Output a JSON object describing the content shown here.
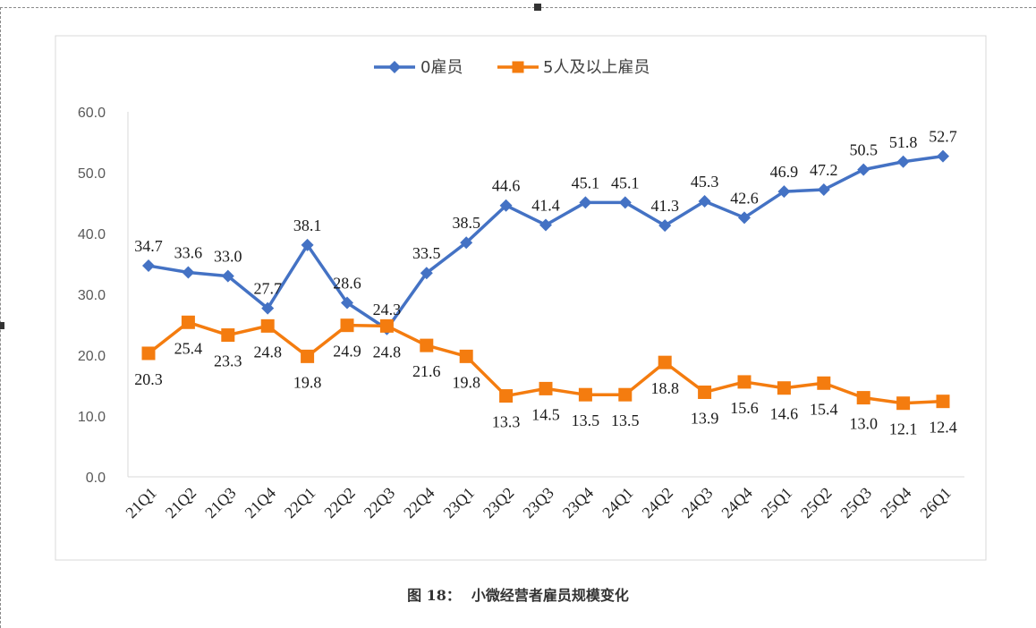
{
  "caption": {
    "figure_no": "图 18：",
    "title": "小微经营者雇员规模变化"
  },
  "chart_data": {
    "type": "line",
    "title": "",
    "xlabel": "",
    "ylabel": "",
    "categories": [
      "21Q1",
      "21Q2",
      "21Q3",
      "21Q4",
      "22Q1",
      "22Q2",
      "22Q3",
      "22Q4",
      "23Q1",
      "23Q2",
      "23Q3",
      "23Q4",
      "24Q1",
      "24Q2",
      "24Q3",
      "24Q4",
      "25Q1",
      "25Q2",
      "25Q3",
      "25Q4",
      "26Q1"
    ],
    "ylim": [
      0,
      60
    ],
    "yticks": [
      "0.0",
      "10.0",
      "20.0",
      "30.0",
      "40.0",
      "50.0",
      "60.0"
    ],
    "legend_position": "top",
    "grid": false,
    "series": [
      {
        "name": "0雇员",
        "color": "#4472C4",
        "marker": "diamond",
        "values": [
          34.7,
          33.6,
          33.0,
          27.7,
          38.1,
          28.6,
          24.3,
          33.5,
          38.5,
          44.6,
          41.4,
          45.1,
          45.1,
          41.3,
          45.3,
          42.6,
          46.9,
          47.2,
          50.5,
          51.8,
          52.7
        ],
        "labels": [
          "34.7",
          "33.6",
          "33.0",
          "27.7",
          "38.1",
          "28.6",
          "24.3",
          "33.5",
          "38.5",
          "44.6",
          "41.4",
          "45.1",
          "45.1",
          "41.3",
          "45.3",
          "42.6",
          "46.9",
          "47.2",
          "50.5",
          "51.8",
          "52.7"
        ]
      },
      {
        "name": "5人及以上雇员",
        "color": "#F47C0F",
        "marker": "square",
        "values": [
          20.3,
          25.4,
          23.3,
          24.8,
          19.8,
          24.9,
          24.8,
          21.6,
          19.8,
          13.3,
          14.5,
          13.5,
          13.5,
          18.8,
          13.9,
          15.6,
          14.6,
          15.4,
          13.0,
          12.1,
          12.4
        ],
        "labels": [
          "20.3",
          "25.4",
          "23.3",
          "24.8",
          "19.8",
          "24.9",
          "24.8",
          "21.6",
          "19.8",
          "13.3",
          "14.5",
          "13.5",
          "13.5",
          "18.8",
          "13.9",
          "15.6",
          "14.6",
          "15.4",
          "13.0",
          "12.1",
          "12.4"
        ]
      }
    ]
  }
}
